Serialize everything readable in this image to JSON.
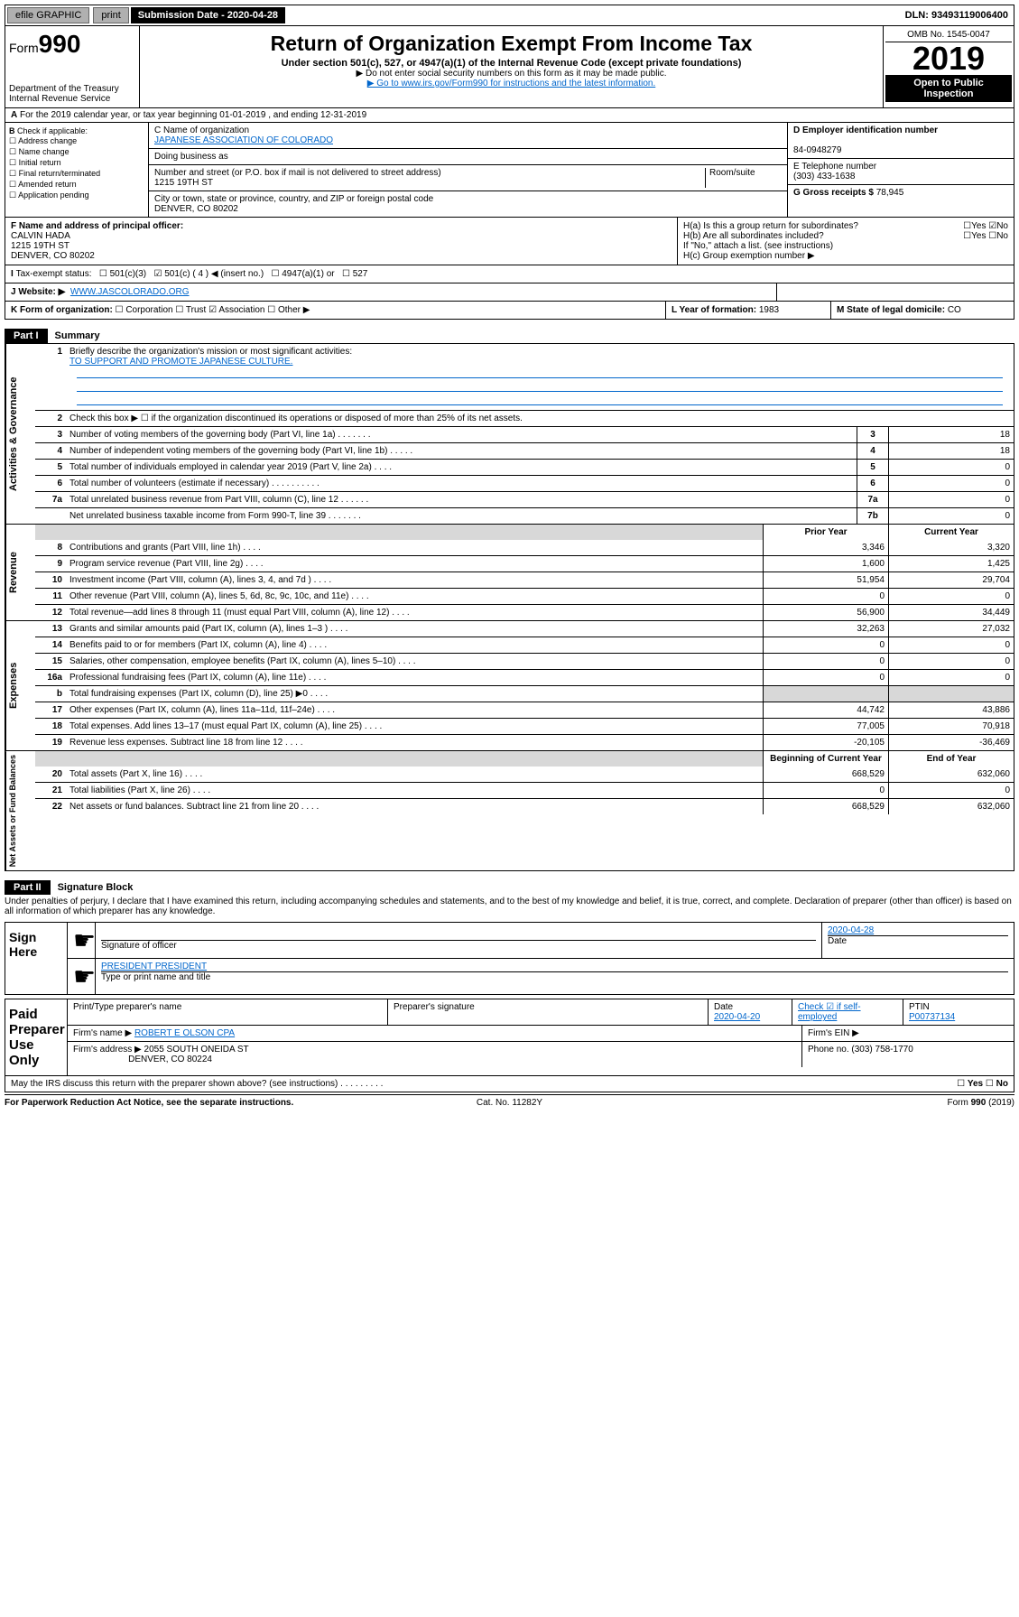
{
  "topbar": {
    "efile": "efile GRAPHIC",
    "print": "print",
    "subLabel": "Submission Date - 2020-04-28",
    "dln": "DLN: 93493119006400"
  },
  "header": {
    "formWord": "Form",
    "formNum": "990",
    "title": "Return of Organization Exempt From Income Tax",
    "sub": "Under section 501(c), 527, or 4947(a)(1) of the Internal Revenue Code (except private foundations)",
    "note1": "▶ Do not enter social security numbers on this form as it may be made public.",
    "note2": "▶ Go to www.irs.gov/Form990 for instructions and the latest information.",
    "dept": "Department of the Treasury",
    "irs": "Internal Revenue Service",
    "omb": "OMB No. 1545-0047",
    "year": "2019",
    "open": "Open to Public Inspection"
  },
  "A": {
    "text": "For the 2019 calendar year, or tax year beginning 01-01-2019   , and ending 12-31-2019"
  },
  "B": {
    "label": "Check if applicable:",
    "opts": [
      "Address change",
      "Name change",
      "Initial return",
      "Final return/terminated",
      "Amended return",
      "Application pending"
    ]
  },
  "C": {
    "nameLbl": "C Name of organization",
    "name": "JAPANESE ASSOCIATION OF COLORADO",
    "dba": "Doing business as",
    "addrLbl": "Number and street (or P.O. box if mail is not delivered to street address)",
    "room": "Room/suite",
    "addr": "1215 19TH ST",
    "cityLbl": "City or town, state or province, country, and ZIP or foreign postal code",
    "city": "DENVER, CO  80202"
  },
  "D": {
    "lbl": "D Employer identification number",
    "val": "84-0948279"
  },
  "E": {
    "lbl": "E Telephone number",
    "val": "(303) 433-1638"
  },
  "G": {
    "lbl": "G Gross receipts $",
    "val": "78,945"
  },
  "F": {
    "lbl": "F  Name and address of principal officer:",
    "name": "CALVIN HADA",
    "addr1": "1215 19TH ST",
    "addr2": "DENVER, CO  80202"
  },
  "H": {
    "a": "H(a)  Is this a group return for subordinates?",
    "b": "H(b)  Are all subordinates included?",
    "bnote": "If \"No,\" attach a list. (see instructions)",
    "c": "H(c)  Group exemption number ▶",
    "yes": "Yes",
    "no": "No"
  },
  "I": {
    "lbl": "Tax-exempt status:",
    "o1": "501(c)(3)",
    "o2": "501(c) ( 4 ) ◀ (insert no.)",
    "o3": "4947(a)(1) or",
    "o4": "527"
  },
  "J": {
    "lbl": "Website: ▶",
    "val": "WWW.JASCOLORADO.ORG"
  },
  "K": {
    "lbl": "K Form of organization:",
    "o1": "Corporation",
    "o2": "Trust",
    "o3": "Association",
    "o4": "Other ▶"
  },
  "L": {
    "lbl": "L Year of formation:",
    "val": "1983"
  },
  "M": {
    "lbl": "M State of legal domicile:",
    "val": "CO"
  },
  "partI": {
    "num": "Part I",
    "title": "Summary"
  },
  "s1": {
    "lbl": "Briefly describe the organization's mission or most significant activities:",
    "val": "TO SUPPORT AND PROMOTE JAPANESE CULTURE."
  },
  "s2": "Check this box ▶ ☐  if the organization discontinued its operations or disposed of more than 25% of its net assets.",
  "lines": {
    "3": {
      "t": "Number of voting members of the governing body (Part VI, line 1a)",
      "v": "18"
    },
    "4": {
      "t": "Number of independent voting members of the governing body (Part VI, line 1b)",
      "v": "18"
    },
    "5": {
      "t": "Total number of individuals employed in calendar year 2019 (Part V, line 2a)",
      "v": "0"
    },
    "6": {
      "t": "Total number of volunteers (estimate if necessary)",
      "v": "0"
    },
    "7a": {
      "t": "Total unrelated business revenue from Part VIII, column (C), line 12",
      "v": "0"
    },
    "7b": {
      "t": "Net unrelated business taxable income from Form 990-T, line 39",
      "v": "0"
    }
  },
  "tbl": {
    "h1": "Prior Year",
    "h2": "Current Year",
    "rows": [
      {
        "n": "8",
        "t": "Contributions and grants (Part VIII, line 1h)",
        "p": "3,346",
        "c": "3,320"
      },
      {
        "n": "9",
        "t": "Program service revenue (Part VIII, line 2g)",
        "p": "1,600",
        "c": "1,425"
      },
      {
        "n": "10",
        "t": "Investment income (Part VIII, column (A), lines 3, 4, and 7d )",
        "p": "51,954",
        "c": "29,704"
      },
      {
        "n": "11",
        "t": "Other revenue (Part VIII, column (A), lines 5, 6d, 8c, 9c, 10c, and 11e)",
        "p": "0",
        "c": "0"
      },
      {
        "n": "12",
        "t": "Total revenue—add lines 8 through 11 (must equal Part VIII, column (A), line 12)",
        "p": "56,900",
        "c": "34,449"
      },
      {
        "n": "13",
        "t": "Grants and similar amounts paid (Part IX, column (A), lines 1–3 )",
        "p": "32,263",
        "c": "27,032"
      },
      {
        "n": "14",
        "t": "Benefits paid to or for members (Part IX, column (A), line 4)",
        "p": "0",
        "c": "0"
      },
      {
        "n": "15",
        "t": "Salaries, other compensation, employee benefits (Part IX, column (A), lines 5–10)",
        "p": "0",
        "c": "0"
      },
      {
        "n": "16a",
        "t": "Professional fundraising fees (Part IX, column (A), line 11e)",
        "p": "0",
        "c": "0"
      },
      {
        "n": "b",
        "t": "Total fundraising expenses (Part IX, column (D), line 25) ▶0",
        "p": "",
        "c": "",
        "gray": true
      },
      {
        "n": "17",
        "t": "Other expenses (Part IX, column (A), lines 11a–11d, 11f–24e)",
        "p": "44,742",
        "c": "43,886"
      },
      {
        "n": "18",
        "t": "Total expenses. Add lines 13–17 (must equal Part IX, column (A), line 25)",
        "p": "77,005",
        "c": "70,918"
      },
      {
        "n": "19",
        "t": "Revenue less expenses. Subtract line 18 from line 12",
        "p": "-20,105",
        "c": "-36,469"
      }
    ],
    "h3": "Beginning of Current Year",
    "h4": "End of Year",
    "rows2": [
      {
        "n": "20",
        "t": "Total assets (Part X, line 16)",
        "p": "668,529",
        "c": "632,060"
      },
      {
        "n": "21",
        "t": "Total liabilities (Part X, line 26)",
        "p": "0",
        "c": "0"
      },
      {
        "n": "22",
        "t": "Net assets or fund balances. Subtract line 21 from line 20",
        "p": "668,529",
        "c": "632,060"
      }
    ]
  },
  "vtabs": {
    "a": "Activities & Governance",
    "b": "Revenue",
    "c": "Expenses",
    "d": "Net Assets or Fund Balances"
  },
  "partII": {
    "num": "Part II",
    "title": "Signature Block"
  },
  "penalty": "Under penalties of perjury, I declare that I have examined this return, including accompanying schedules and statements, and to the best of my knowledge and belief, it is true, correct, and complete. Declaration of preparer (other than officer) is based on all information of which preparer has any knowledge.",
  "sign": {
    "l": "Sign Here",
    "date": "2020-04-28",
    "dateLbl": "Date",
    "sigLbl": "Signature of officer",
    "nameLbl": "Type or print name and title",
    "name": "PRESIDENT PRESIDENT"
  },
  "paid": {
    "l": "Paid Preparer Use Only",
    "c1": "Print/Type preparer's name",
    "c2": "Preparer's signature",
    "c3": "Date",
    "c3v": "2020-04-20",
    "c4": "Check ☑ if self-employed",
    "c5": "PTIN",
    "c5v": "P00737134",
    "fnLbl": "Firm's name   ▶",
    "fn": "ROBERT E OLSON CPA",
    "einLbl": "Firm's EIN ▶",
    "faLbl": "Firm's address ▶",
    "fa1": "2055 SOUTH ONEIDA ST",
    "fa2": "DENVER, CO  80224",
    "phLbl": "Phone no.",
    "ph": "(303) 758-1770"
  },
  "discuss": "May the IRS discuss this return with the preparer shown above? (see instructions)",
  "footer": {
    "l": "For Paperwork Reduction Act Notice, see the separate instructions.",
    "c": "Cat. No. 11282Y",
    "r": "Form 990 (2019)"
  }
}
